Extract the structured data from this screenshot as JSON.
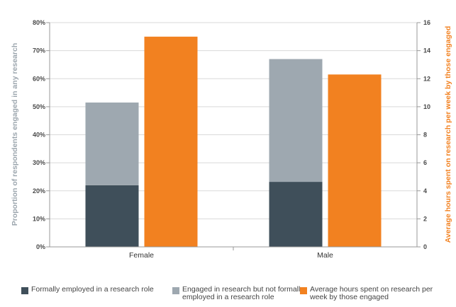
{
  "chart_data": {
    "type": "bar",
    "categories": [
      "Female",
      "Male"
    ],
    "stacked_series": [
      {
        "name": "Formally employed in a research role",
        "axis": "left",
        "values": [
          22,
          23.2
        ],
        "color": "#3f4f5a"
      },
      {
        "name": "Engaged in research but not formally employed in a research role",
        "axis": "left",
        "values": [
          29.5,
          43.8
        ],
        "color": "#9ea8b0"
      }
    ],
    "series": [
      {
        "name": "Average hours spent on research per week by those engaged",
        "axis": "right",
        "values": [
          15,
          12.3
        ],
        "color": "#f28120"
      }
    ],
    "ylabel": "Proportion of respondents engaged in any research",
    "y2label": "Average hours spent on research per week by those engaged",
    "ylim": [
      0,
      80
    ],
    "y2lim": [
      0,
      16
    ],
    "yticks": [
      "0%",
      "10%",
      "20%",
      "30%",
      "40%",
      "50%",
      "60%",
      "70%",
      "80%"
    ],
    "y2ticks": [
      "0",
      "2",
      "4",
      "6",
      "8",
      "10",
      "12",
      "14",
      "16"
    ],
    "grid": true,
    "legend_position": "bottom"
  },
  "legend": [
    {
      "label": "Formally employed in a research role",
      "color": "#3f4f5a"
    },
    {
      "label": "Engaged in research but not formally employed in a research role",
      "color": "#9ea8b0"
    },
    {
      "label": "Average hours spent on research per week by those engaged",
      "color": "#f28120"
    }
  ]
}
